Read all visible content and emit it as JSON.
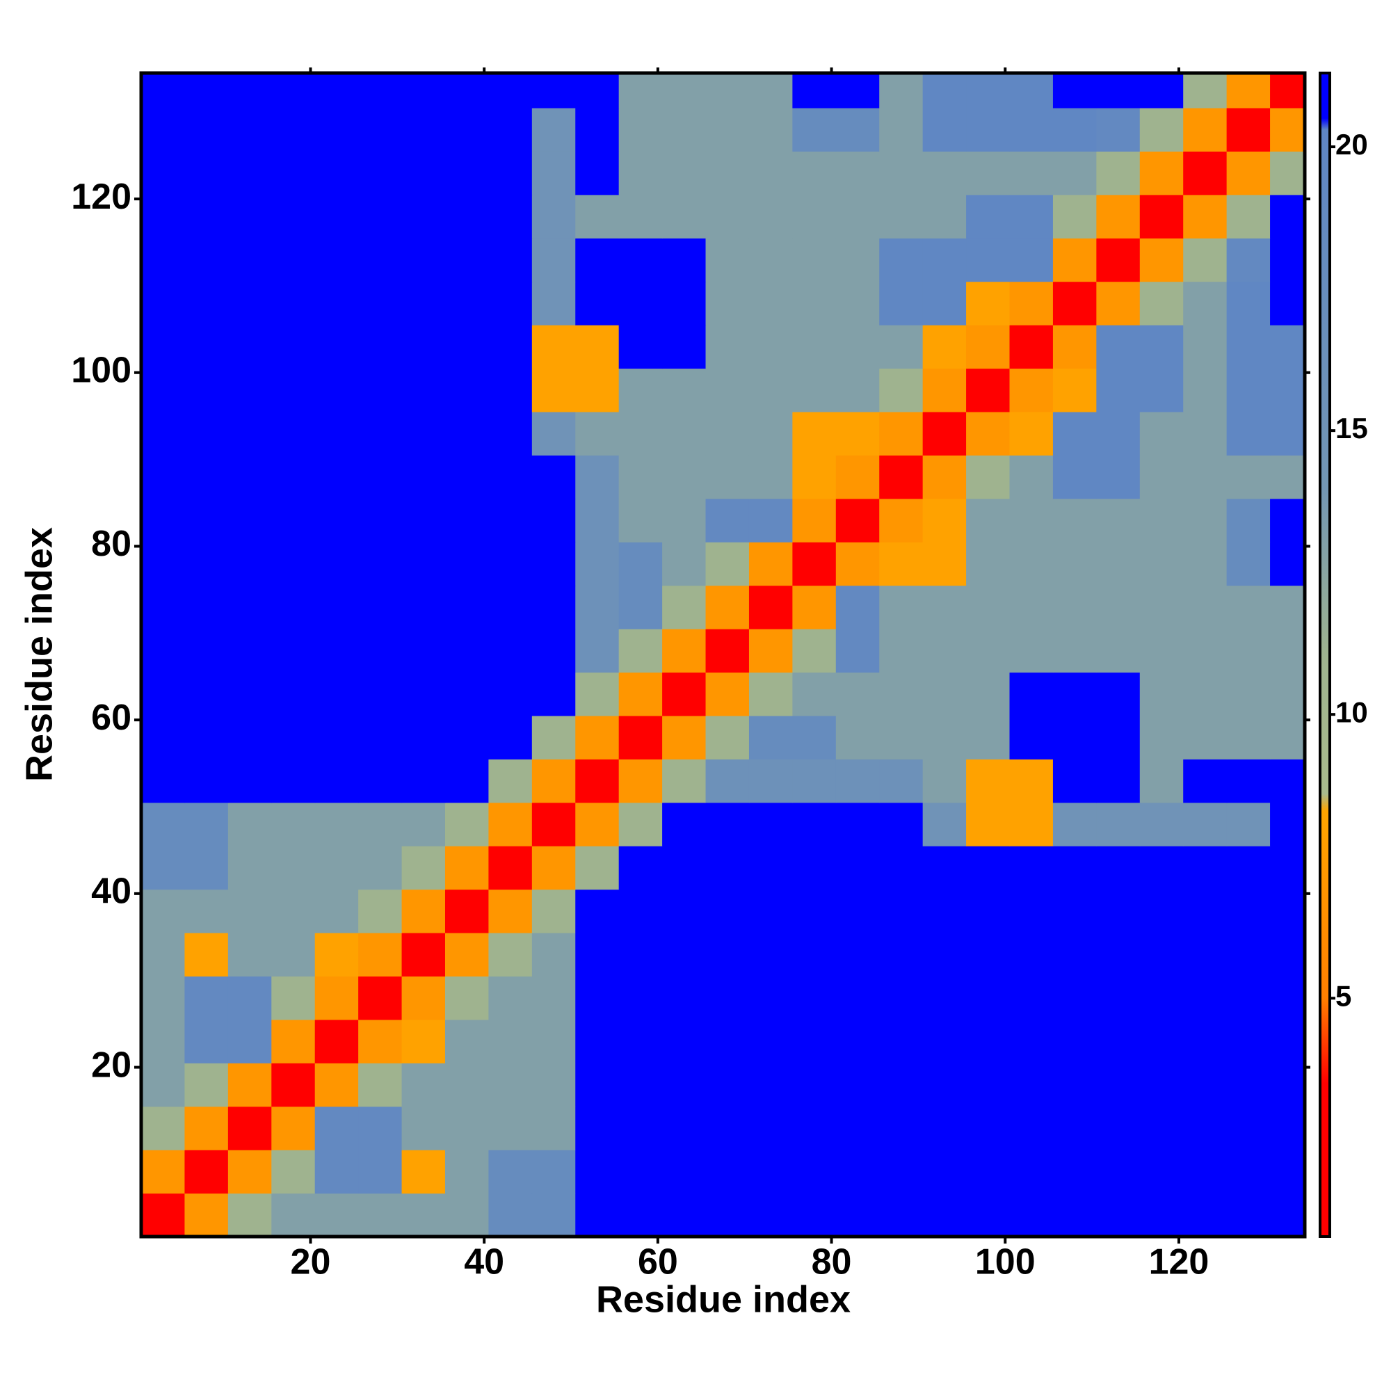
{
  "chart_data": {
    "type": "heatmap",
    "x_label": "Residue index",
    "y_label": "Residue index",
    "x_edges": [
      0.5,
      5.5,
      10.5,
      15.5,
      20.5,
      25.5,
      30.5,
      35.5,
      40.5,
      45.5,
      50.5,
      55.5,
      60.5,
      65.5,
      70.5,
      75.5,
      80.5,
      85.5,
      90.5,
      95.5,
      100.5,
      105.5,
      110.5,
      115.5,
      120.5,
      125.5,
      130.5,
      134.5
    ],
    "y_edges": [
      0.5,
      5.5,
      10.5,
      15.5,
      20.5,
      25.5,
      30.5,
      35.5,
      40.5,
      45.5,
      50.5,
      55.5,
      60.5,
      65.5,
      70.5,
      75.5,
      80.5,
      85.5,
      90.5,
      95.5,
      100.5,
      105.5,
      110.5,
      115.5,
      120.5,
      125.5,
      130.5,
      134.5
    ],
    "xlim": [
      0.5,
      134.5
    ],
    "ylim": [
      0.5,
      134.5
    ],
    "xticks": [
      20,
      40,
      60,
      80,
      100,
      120
    ],
    "yticks": [
      20,
      40,
      60,
      80,
      100,
      120
    ],
    "zlim": [
      0.8,
      21.3
    ],
    "colorbar_ticks": [
      5,
      10,
      15,
      20
    ],
    "colorscale": [
      {
        "value": 0.8,
        "color": "#ff0000"
      },
      {
        "value": 3.5,
        "color": "#ff0000"
      },
      {
        "value": 5,
        "color": "#ff7f00"
      },
      {
        "value": 8.3,
        "color": "#ffa500"
      },
      {
        "value": 8.6,
        "color": "#a9ba8e"
      },
      {
        "value": 11,
        "color": "#9fb38f"
      },
      {
        "value": 14,
        "color": "#7396b4"
      },
      {
        "value": 20.3,
        "color": "#5f86c4"
      },
      {
        "value": 20.5,
        "color": "#0000ff"
      },
      {
        "value": 21.3,
        "color": "#0000ff"
      }
    ],
    "z": [
      [
        3,
        7,
        11,
        13,
        13,
        13,
        13,
        13,
        18,
        18,
        21,
        21,
        21,
        21,
        21,
        21,
        21,
        21,
        21,
        21,
        21,
        21,
        21,
        21,
        21,
        21,
        21
      ],
      [
        7,
        3,
        7,
        11,
        19,
        19,
        8,
        13,
        18,
        18,
        21,
        21,
        21,
        21,
        21,
        21,
        21,
        21,
        21,
        21,
        21,
        21,
        21,
        21,
        21,
        21,
        21
      ],
      [
        11,
        7,
        3,
        7,
        19,
        19,
        13,
        13,
        13,
        13,
        21,
        21,
        21,
        21,
        21,
        21,
        21,
        21,
        21,
        21,
        21,
        21,
        21,
        21,
        21,
        21,
        21
      ],
      [
        13,
        11,
        7,
        3,
        7,
        11,
        13,
        13,
        13,
        13,
        21,
        21,
        21,
        21,
        21,
        21,
        21,
        21,
        21,
        21,
        21,
        21,
        21,
        21,
        21,
        21,
        21
      ],
      [
        13,
        19,
        19,
        7,
        3,
        7,
        8,
        13,
        13,
        13,
        21,
        21,
        21,
        21,
        21,
        21,
        21,
        21,
        21,
        21,
        21,
        21,
        21,
        21,
        21,
        21,
        21
      ],
      [
        13,
        19,
        19,
        11,
        7,
        3,
        7,
        11,
        13,
        13,
        21,
        21,
        21,
        21,
        21,
        21,
        21,
        21,
        21,
        21,
        21,
        21,
        21,
        21,
        21,
        21,
        21
      ],
      [
        13,
        8,
        13,
        13,
        8,
        7,
        3,
        7,
        11,
        13,
        21,
        21,
        21,
        21,
        21,
        21,
        21,
        21,
        21,
        21,
        21,
        21,
        21,
        21,
        21,
        21,
        21
      ],
      [
        13,
        13,
        13,
        13,
        13,
        11,
        7,
        3,
        7,
        11,
        21,
        21,
        21,
        21,
        21,
        21,
        21,
        21,
        21,
        21,
        21,
        21,
        21,
        21,
        21,
        21,
        21
      ],
      [
        18,
        18,
        13,
        13,
        13,
        13,
        11,
        7,
        3,
        7,
        11,
        21,
        21,
        21,
        21,
        21,
        21,
        21,
        21,
        21,
        21,
        21,
        21,
        21,
        21,
        21,
        21
      ],
      [
        18,
        18,
        13,
        13,
        13,
        13,
        13,
        11,
        7,
        3,
        7,
        11,
        21,
        21,
        21,
        21,
        21,
        21,
        15,
        8,
        8,
        15,
        15,
        15,
        15,
        15,
        21
      ],
      [
        21,
        21,
        21,
        21,
        21,
        21,
        21,
        21,
        11,
        7,
        3,
        7,
        11,
        16,
        16,
        16,
        16,
        16,
        13,
        8,
        8,
        21,
        21,
        13,
        21,
        21,
        21
      ],
      [
        21,
        21,
        21,
        21,
        21,
        21,
        21,
        21,
        21,
        11,
        7,
        3,
        7,
        11,
        18,
        18,
        13,
        13,
        13,
        13,
        21,
        21,
        21,
        13,
        13,
        13,
        13
      ],
      [
        21,
        21,
        21,
        21,
        21,
        21,
        21,
        21,
        21,
        21,
        11,
        7,
        3,
        7,
        11,
        13,
        13,
        13,
        13,
        13,
        21,
        21,
        21,
        13,
        13,
        13,
        13
      ],
      [
        21,
        21,
        21,
        21,
        21,
        21,
        21,
        21,
        21,
        21,
        16,
        11,
        7,
        3,
        7,
        11,
        19,
        13,
        13,
        13,
        13,
        13,
        13,
        13,
        13,
        13,
        13
      ],
      [
        21,
        21,
        21,
        21,
        21,
        21,
        21,
        21,
        21,
        21,
        16,
        18,
        11,
        7,
        3,
        7,
        19,
        13,
        13,
        13,
        13,
        13,
        13,
        13,
        13,
        13,
        13
      ],
      [
        21,
        21,
        21,
        21,
        21,
        21,
        21,
        21,
        21,
        21,
        16,
        18,
        13,
        11,
        7,
        3,
        7,
        8,
        8,
        13,
        13,
        13,
        13,
        13,
        13,
        18,
        21
      ],
      [
        21,
        21,
        21,
        21,
        21,
        21,
        21,
        21,
        21,
        21,
        16,
        13,
        13,
        19,
        19,
        7,
        3,
        7,
        8,
        13,
        13,
        13,
        13,
        13,
        13,
        18,
        21
      ],
      [
        21,
        21,
        21,
        21,
        21,
        21,
        21,
        21,
        21,
        21,
        16,
        13,
        13,
        13,
        13,
        8,
        7,
        3,
        7,
        11,
        13,
        20,
        20,
        13,
        13,
        13,
        13
      ],
      [
        21,
        21,
        21,
        21,
        21,
        21,
        21,
        21,
        21,
        15,
        13,
        13,
        13,
        13,
        13,
        8,
        8,
        7,
        3,
        7,
        8,
        20,
        20,
        13,
        13,
        20,
        20
      ],
      [
        21,
        21,
        21,
        21,
        21,
        21,
        21,
        21,
        21,
        8,
        8,
        13,
        13,
        13,
        13,
        13,
        13,
        11,
        7,
        3,
        7,
        8,
        20,
        20,
        13,
        20,
        20
      ],
      [
        21,
        21,
        21,
        21,
        21,
        21,
        21,
        21,
        21,
        8,
        8,
        21,
        21,
        13,
        13,
        13,
        13,
        13,
        8,
        7,
        3,
        7,
        20,
        20,
        13,
        20,
        20
      ],
      [
        21,
        21,
        21,
        21,
        21,
        21,
        21,
        21,
        21,
        15,
        21,
        21,
        21,
        13,
        13,
        13,
        13,
        20,
        20,
        8,
        7,
        3,
        7,
        11,
        13,
        20,
        21
      ],
      [
        21,
        21,
        21,
        21,
        21,
        21,
        21,
        21,
        21,
        15,
        21,
        21,
        21,
        13,
        13,
        13,
        13,
        20,
        20,
        20,
        20,
        7,
        3,
        7,
        11,
        19,
        21
      ],
      [
        21,
        21,
        21,
        21,
        21,
        21,
        21,
        21,
        21,
        15,
        13,
        13,
        13,
        13,
        13,
        13,
        13,
        13,
        13,
        20,
        20,
        11,
        7,
        3,
        7,
        11,
        21
      ],
      [
        21,
        21,
        21,
        21,
        21,
        21,
        21,
        21,
        21,
        15,
        21,
        13,
        13,
        13,
        13,
        13,
        13,
        13,
        13,
        13,
        13,
        13,
        11,
        7,
        3,
        7,
        11
      ],
      [
        21,
        21,
        21,
        21,
        21,
        21,
        21,
        21,
        21,
        15,
        21,
        13,
        13,
        13,
        13,
        18,
        18,
        13,
        20,
        20,
        20,
        20,
        19,
        11,
        7,
        3,
        7
      ],
      [
        21,
        21,
        21,
        21,
        21,
        21,
        21,
        21,
        21,
        21,
        21,
        13,
        13,
        13,
        13,
        21,
        21,
        13,
        20,
        20,
        20,
        21,
        21,
        21,
        11,
        7,
        3
      ]
    ]
  }
}
